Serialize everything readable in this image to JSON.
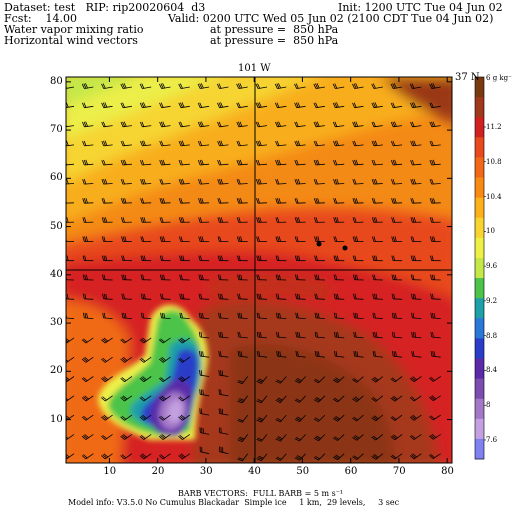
{
  "header": {
    "dataset_line": "Dataset: test   RIP: rip20020604  d3",
    "init_line": "Init: 1200 UTC Tue 04 Jun 02",
    "fcst_line": "Fcst:    14.00",
    "valid_line": "Valid: 0200 UTC Wed 05 Jun 02 (2100 CDT Tue 04 Jun 02)",
    "field1_line": "Water vapor mixing ratio",
    "pressure1_line": "at pressure =  850 hPa",
    "field2_line": "Horizontal wind vectors",
    "pressure2_line": "at pressure =  850 hPa"
  },
  "plot": {
    "top_label": "101 W",
    "right_label": "37 N",
    "x_ticks": [
      "10",
      "20",
      "30",
      "40",
      "50",
      "60",
      "70",
      "80"
    ],
    "y_ticks": [
      "10",
      "20",
      "30",
      "40",
      "50",
      "60",
      "70",
      "80"
    ]
  },
  "colorbar": {
    "unit": "g kg⁻¹",
    "top_value": "6",
    "labels": [
      "11.2",
      "10.8",
      "10.4",
      "10",
      "9.6",
      "9.2",
      "8.8",
      "8.4",
      "8",
      "7.6"
    ],
    "colors": [
      "#7a3a10",
      "#a0381a",
      "#d02020",
      "#e84a1e",
      "#f06818",
      "#f88a14",
      "#fcb01a",
      "#f8d430",
      "#eef048",
      "#c4e848",
      "#4cc44a",
      "#1ea0a8",
      "#2878d8",
      "#2a3cc8",
      "#5a2aa8",
      "#7c4cb0",
      "#a478c8",
      "#c4a0e0",
      "#8080f0"
    ]
  },
  "footer": {
    "barb_line": "BARB VECTORS:  FULL BARB = 5 m s⁻¹",
    "model_line": "Model info: V3.5.0 No Cumulus Blackadar  Simple ice     1 km,  29 levels,     3 sec"
  }
}
